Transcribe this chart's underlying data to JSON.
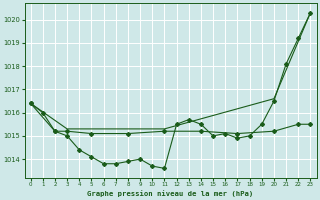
{
  "bg_color": "#cfe8e8",
  "grid_color": "#b0d0d0",
  "line_color": "#1a5c1a",
  "title": "Graphe pression niveau de la mer (hPa)",
  "xlim": [
    -0.5,
    23.5
  ],
  "ylim": [
    1013.2,
    1020.7
  ],
  "yticks": [
    1014,
    1015,
    1016,
    1017,
    1018,
    1019,
    1020
  ],
  "xticks": [
    0,
    1,
    2,
    3,
    4,
    5,
    6,
    7,
    8,
    9,
    10,
    11,
    12,
    13,
    14,
    15,
    16,
    17,
    18,
    19,
    20,
    21,
    22,
    23
  ],
  "series_main_x": [
    0,
    1,
    2,
    3,
    4,
    5,
    6,
    7,
    8,
    9,
    10,
    11,
    12,
    13,
    14,
    15,
    16,
    17,
    18,
    19,
    20,
    21,
    22,
    23
  ],
  "series_main_y": [
    1016.4,
    1016.0,
    1015.2,
    1015.0,
    1014.4,
    1014.1,
    1013.8,
    1013.8,
    1013.9,
    1014.0,
    1013.7,
    1013.6,
    1015.5,
    1015.7,
    1015.5,
    1015.0,
    1015.1,
    1014.9,
    1015.0,
    1015.5,
    1016.5,
    1018.1,
    1019.2,
    1020.3
  ],
  "series_smooth_x": [
    0,
    3,
    11,
    20,
    23
  ],
  "series_smooth_y": [
    1016.4,
    1015.3,
    1015.3,
    1016.6,
    1020.3
  ],
  "series_flat_x": [
    0,
    2,
    3,
    5,
    8,
    11,
    14,
    17,
    20,
    22,
    23
  ],
  "series_flat_y": [
    1016.4,
    1015.2,
    1015.2,
    1015.1,
    1015.1,
    1015.2,
    1015.2,
    1015.1,
    1015.2,
    1015.5,
    1015.5
  ]
}
